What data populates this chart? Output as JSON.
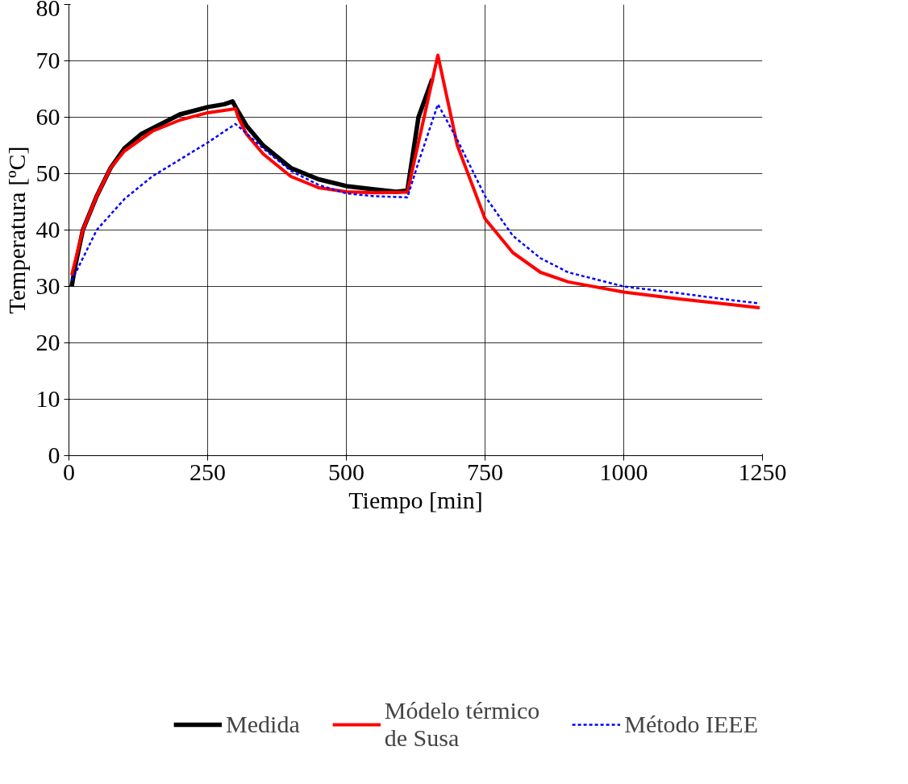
{
  "chart_data": {
    "type": "line",
    "xlabel": "Tiempo [min]",
    "ylabel": "Temperatura [ºC]",
    "xlim": [
      0,
      1250
    ],
    "xticks": [
      0,
      250,
      500,
      750,
      1000,
      1250
    ],
    "ylim": [
      0,
      80
    ],
    "yticks": [
      0,
      10,
      20,
      30,
      40,
      50,
      60,
      70,
      80
    ],
    "grid": true,
    "legend": "bottom",
    "marker": "none",
    "series": [
      {
        "name": "Medida",
        "color": "#000000",
        "line_style": "solid",
        "x": [
          5,
          10,
          25,
          50,
          75,
          100,
          130,
          160,
          200,
          250,
          280,
          295,
          302,
          320,
          350,
          400,
          450,
          500,
          550,
          590,
          610,
          630,
          655
        ],
        "values": [
          30,
          33,
          40,
          46,
          51,
          54.5,
          57,
          58.5,
          60.5,
          61.8,
          62.3,
          62.8,
          61.5,
          58.5,
          55,
          51,
          49,
          47.8,
          47.2,
          46.8,
          47,
          60,
          66.8
        ]
      },
      {
        "name": "Módelo térmico\nde Susa",
        "color": "#ff0000",
        "line_style": "solid",
        "x": [
          5,
          25,
          50,
          75,
          100,
          150,
          200,
          250,
          300,
          305,
          320,
          350,
          400,
          450,
          500,
          550,
          610,
          665,
          700,
          750,
          800,
          850,
          900,
          1000,
          1100,
          1200,
          1245
        ],
        "values": [
          32,
          40,
          46,
          51,
          54,
          57.5,
          59.5,
          60.8,
          61.5,
          60,
          57,
          53.5,
          49.5,
          47.5,
          46.8,
          46.6,
          46.7,
          71,
          55,
          42,
          36,
          32.5,
          30.8,
          29,
          27.8,
          26.7,
          26.2
        ]
      },
      {
        "name": "Método IEEE",
        "color": "#0000ff",
        "line_style": "dashed",
        "x": [
          5,
          25,
          50,
          100,
          150,
          200,
          250,
          300,
          310,
          350,
          400,
          450,
          500,
          550,
          610,
          630,
          665,
          700,
          750,
          800,
          850,
          900,
          1000,
          1100,
          1200,
          1245
        ],
        "values": [
          31,
          35,
          40,
          45.5,
          49.5,
          52.5,
          55.5,
          58.8,
          58,
          54.5,
          50.5,
          48,
          46.5,
          46,
          45.8,
          52,
          62.3,
          56,
          46,
          39,
          35,
          32.5,
          30,
          28.8,
          27.5,
          27
        ]
      }
    ]
  }
}
